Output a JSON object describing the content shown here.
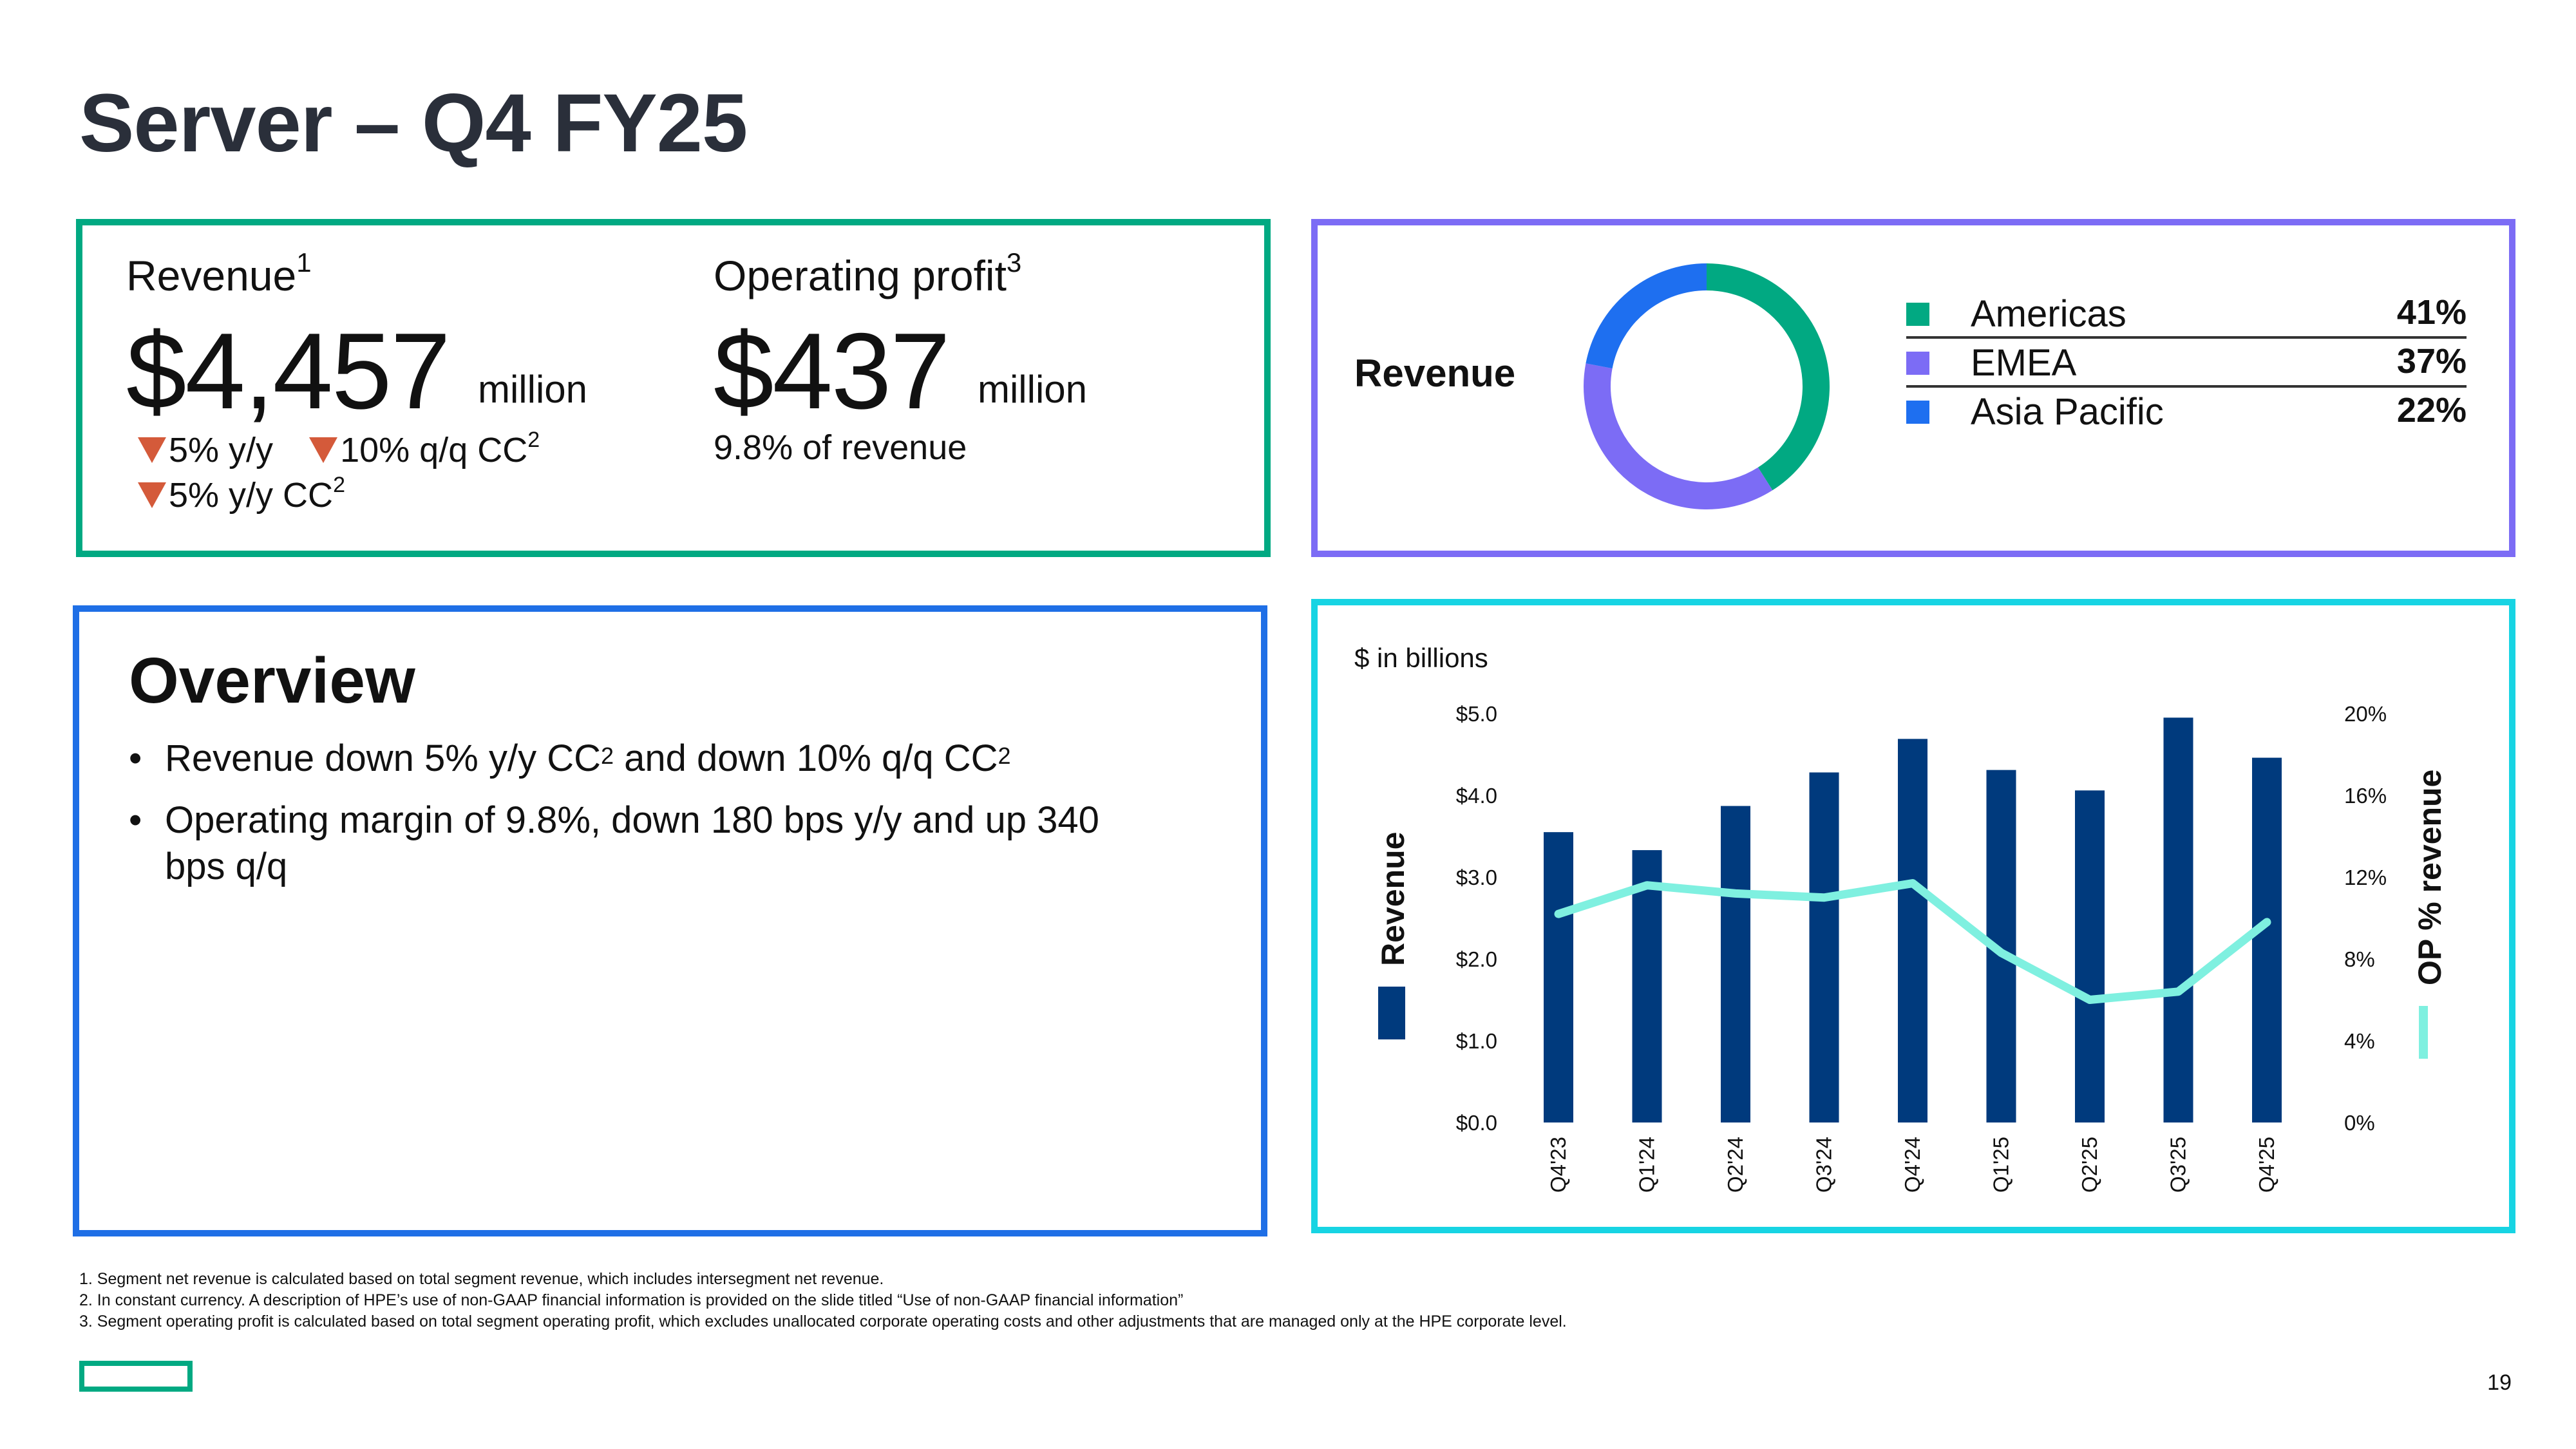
{
  "slide": {
    "title": "Server – Q4 FY25",
    "page_number": "19"
  },
  "kpis": {
    "revenue_label": "Revenue",
    "revenue_note": "1",
    "revenue_value": "$4,457",
    "revenue_unit": "million",
    "revenue_yy": "5% y/y",
    "revenue_qq": "10% q/q CC",
    "revenue_qq_note": "2",
    "revenue_yy_cc": "5% y/y CC",
    "revenue_yy_cc_note": "2",
    "op_label": "Operating profit",
    "op_note": "3",
    "op_value": "$437",
    "op_unit": "million",
    "op_margin": "9.8% of revenue",
    "down_color": "#d45a3a"
  },
  "region_mix": {
    "title": "Revenue",
    "items": [
      {
        "name": "Americas",
        "pct": "41%",
        "value": 41,
        "color": "#01a982"
      },
      {
        "name": "EMEA",
        "pct": "37%",
        "value": 37,
        "color": "#7c6cf5"
      },
      {
        "name": "Asia Pacific",
        "pct": "22%",
        "value": 22,
        "color": "#1e6ff0"
      }
    ]
  },
  "overview": {
    "title": "Overview",
    "bullets": [
      {
        "text": "Revenue down 5% y/y CC",
        "sup": "2",
        "text2": " and down 10% q/q CC",
        "sup2": "2"
      },
      {
        "text": "Operating margin of 9.8%, down 180 bps y/y and up 340 bps q/q"
      }
    ]
  },
  "chart_data": {
    "type": "bar",
    "units_label": "$ in billions",
    "categories": [
      "Q4'23",
      "Q1'24",
      "Q2'24",
      "Q3'24",
      "Q4'24",
      "Q1'25",
      "Q2'25",
      "Q3'25",
      "Q4'25"
    ],
    "series": [
      {
        "name": "Revenue",
        "type": "bar",
        "axis": "left",
        "color": "#003a7d",
        "values": [
          3.55,
          3.33,
          3.87,
          4.28,
          4.69,
          4.31,
          4.06,
          4.95,
          4.46
        ]
      },
      {
        "name": "OP % revenue",
        "type": "line",
        "axis": "right",
        "color": "#7ff0e0",
        "values": [
          10.2,
          11.6,
          11.2,
          11.0,
          11.7,
          8.3,
          6.0,
          6.4,
          9.8
        ]
      }
    ],
    "y_left": {
      "label": "Revenue",
      "range": [
        0,
        5
      ],
      "ticks": [
        "$0.0",
        "$1.0",
        "$2.0",
        "$3.0",
        "$4.0",
        "$5.0"
      ]
    },
    "y_right": {
      "label": "OP % revenue",
      "range": [
        0,
        20
      ],
      "ticks": [
        "0%",
        "4%",
        "8%",
        "12%",
        "16%",
        "20%"
      ]
    },
    "grid": false
  },
  "footnotes": [
    "1. Segment net revenue is calculated based on total segment revenue, which includes intersegment net revenue.",
    "2. In constant currency. A description of HPE’s use of non-GAAP financial information is provided on the slide titled “Use of non-GAAP financial information”",
    "3. Segment operating profit is calculated based on total segment operating profit, which excludes unallocated corporate operating costs and other adjustments that are managed only at the HPE corporate level."
  ]
}
